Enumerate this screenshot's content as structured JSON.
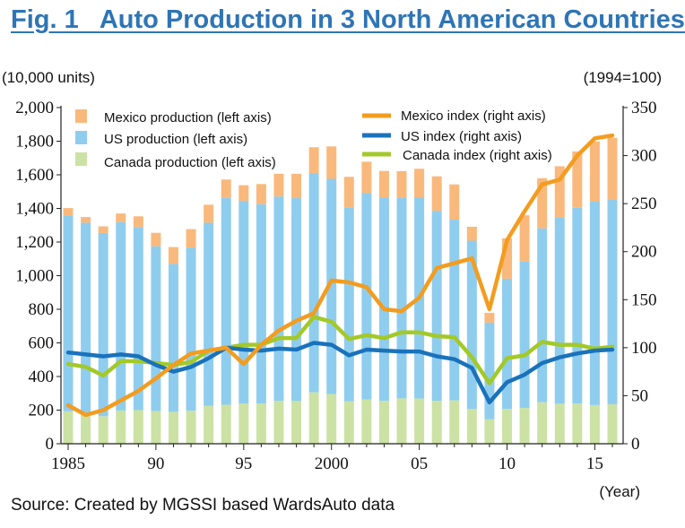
{
  "title": "Fig. 1   Auto Production in 3 North American Countries",
  "source": "Source: Created by MGSSI based WardsAuto data",
  "colors": {
    "title": "#2e75b6",
    "mexico_bar": "#f9b97c",
    "us_bar": "#8fcdef",
    "canada_bar": "#cce2a4",
    "mexico_line": "#f39c1f",
    "us_line": "#1a72bb",
    "canada_line": "#a3c928"
  },
  "chart_data": {
    "type": "bar",
    "stacked": true,
    "combined_with": "line",
    "left_axis": {
      "unit_label": "(10,000 units)",
      "range": [
        0,
        2000
      ],
      "ticks": [
        "0",
        "200",
        "400",
        "600",
        "800",
        "1,000",
        "1,200",
        "1,400",
        "1,600",
        "1,800",
        "2,000"
      ]
    },
    "right_axis": {
      "unit_label": "(1994=100)",
      "range": [
        0,
        350
      ],
      "ticks": [
        "0",
        "50",
        "100",
        "150",
        "200",
        "250",
        "300",
        "350"
      ]
    },
    "x_axis": {
      "unit_label": "(Year)",
      "tick_labels": [
        {
          "year": 1985,
          "label": "1985"
        },
        {
          "year": 1990,
          "label": "90"
        },
        {
          "year": 1995,
          "label": "95"
        },
        {
          "year": 2000,
          "label": "2000"
        },
        {
          "year": 2005,
          "label": "05"
        },
        {
          "year": 2010,
          "label": "10"
        },
        {
          "year": 2015,
          "label": "15"
        }
      ]
    },
    "years": [
      1985,
      1986,
      1987,
      1988,
      1989,
      1990,
      1991,
      1992,
      1993,
      1994,
      1995,
      1996,
      1997,
      1998,
      1999,
      2000,
      2001,
      2002,
      2003,
      2004,
      2005,
      2006,
      2007,
      2008,
      2009,
      2010,
      2011,
      2012,
      2013,
      2014,
      2015,
      2016
    ],
    "bar_series": [
      {
        "name": "Canada production (left axis)",
        "key": "canada",
        "values": [
          193,
          185,
          164,
          198,
          200,
          195,
          190,
          197,
          225,
          232,
          240,
          240,
          256,
          256,
          306,
          296,
          253,
          263,
          256,
          270,
          269,
          256,
          258,
          208,
          146,
          207,
          213,
          247,
          238,
          239,
          230,
          235
        ]
      },
      {
        "name": "US production (left axis)",
        "key": "us",
        "values": [
          1165,
          1130,
          1090,
          1120,
          1090,
          980,
          880,
          970,
          1090,
          1230,
          1205,
          1185,
          1215,
          1205,
          1305,
          1280,
          1150,
          1230,
          1210,
          1195,
          1195,
          1130,
          1075,
          1000,
          575,
          775,
          870,
          1035,
          1110,
          1165,
          1210,
          1220
        ]
      },
      {
        "name": "Mexico production (left axis)",
        "key": "mexico",
        "values": [
          44,
          34,
          39,
          52,
          63,
          80,
          100,
          110,
          107,
          110,
          93,
          120,
          135,
          145,
          153,
          193,
          185,
          185,
          157,
          157,
          172,
          205,
          210,
          83,
          58,
          240,
          276,
          298,
          303,
          335,
          359,
          365
        ]
      }
    ],
    "line_series": [
      {
        "name": "Mexico index (right axis)",
        "key": "mexico",
        "values": [
          40,
          30,
          35,
          45,
          55,
          68,
          82,
          94,
          97,
          100,
          83,
          103,
          118,
          128,
          136,
          170,
          168,
          163,
          140,
          138,
          152,
          183,
          188,
          193,
          140,
          212,
          242,
          270,
          275,
          300,
          318,
          321
        ]
      },
      {
        "name": "US index (right axis)",
        "key": "us",
        "values": [
          95,
          93,
          91,
          93,
          91,
          82,
          75,
          80,
          89,
          100,
          98,
          97,
          99,
          98,
          105,
          103,
          92,
          98,
          97,
          96,
          96,
          91,
          88,
          79,
          43,
          64,
          72,
          84,
          90,
          94,
          97,
          98
        ]
      },
      {
        "name": "Canada index (right axis)",
        "key": "canada",
        "values": [
          83,
          80,
          71,
          86,
          86,
          84,
          82,
          85,
          97,
          100,
          103,
          103,
          110,
          110,
          132,
          127,
          109,
          113,
          110,
          116,
          116,
          112,
          111,
          90,
          63,
          89,
          92,
          106,
          103,
          103,
          99,
          101
        ]
      }
    ],
    "legend_placement": "top"
  }
}
